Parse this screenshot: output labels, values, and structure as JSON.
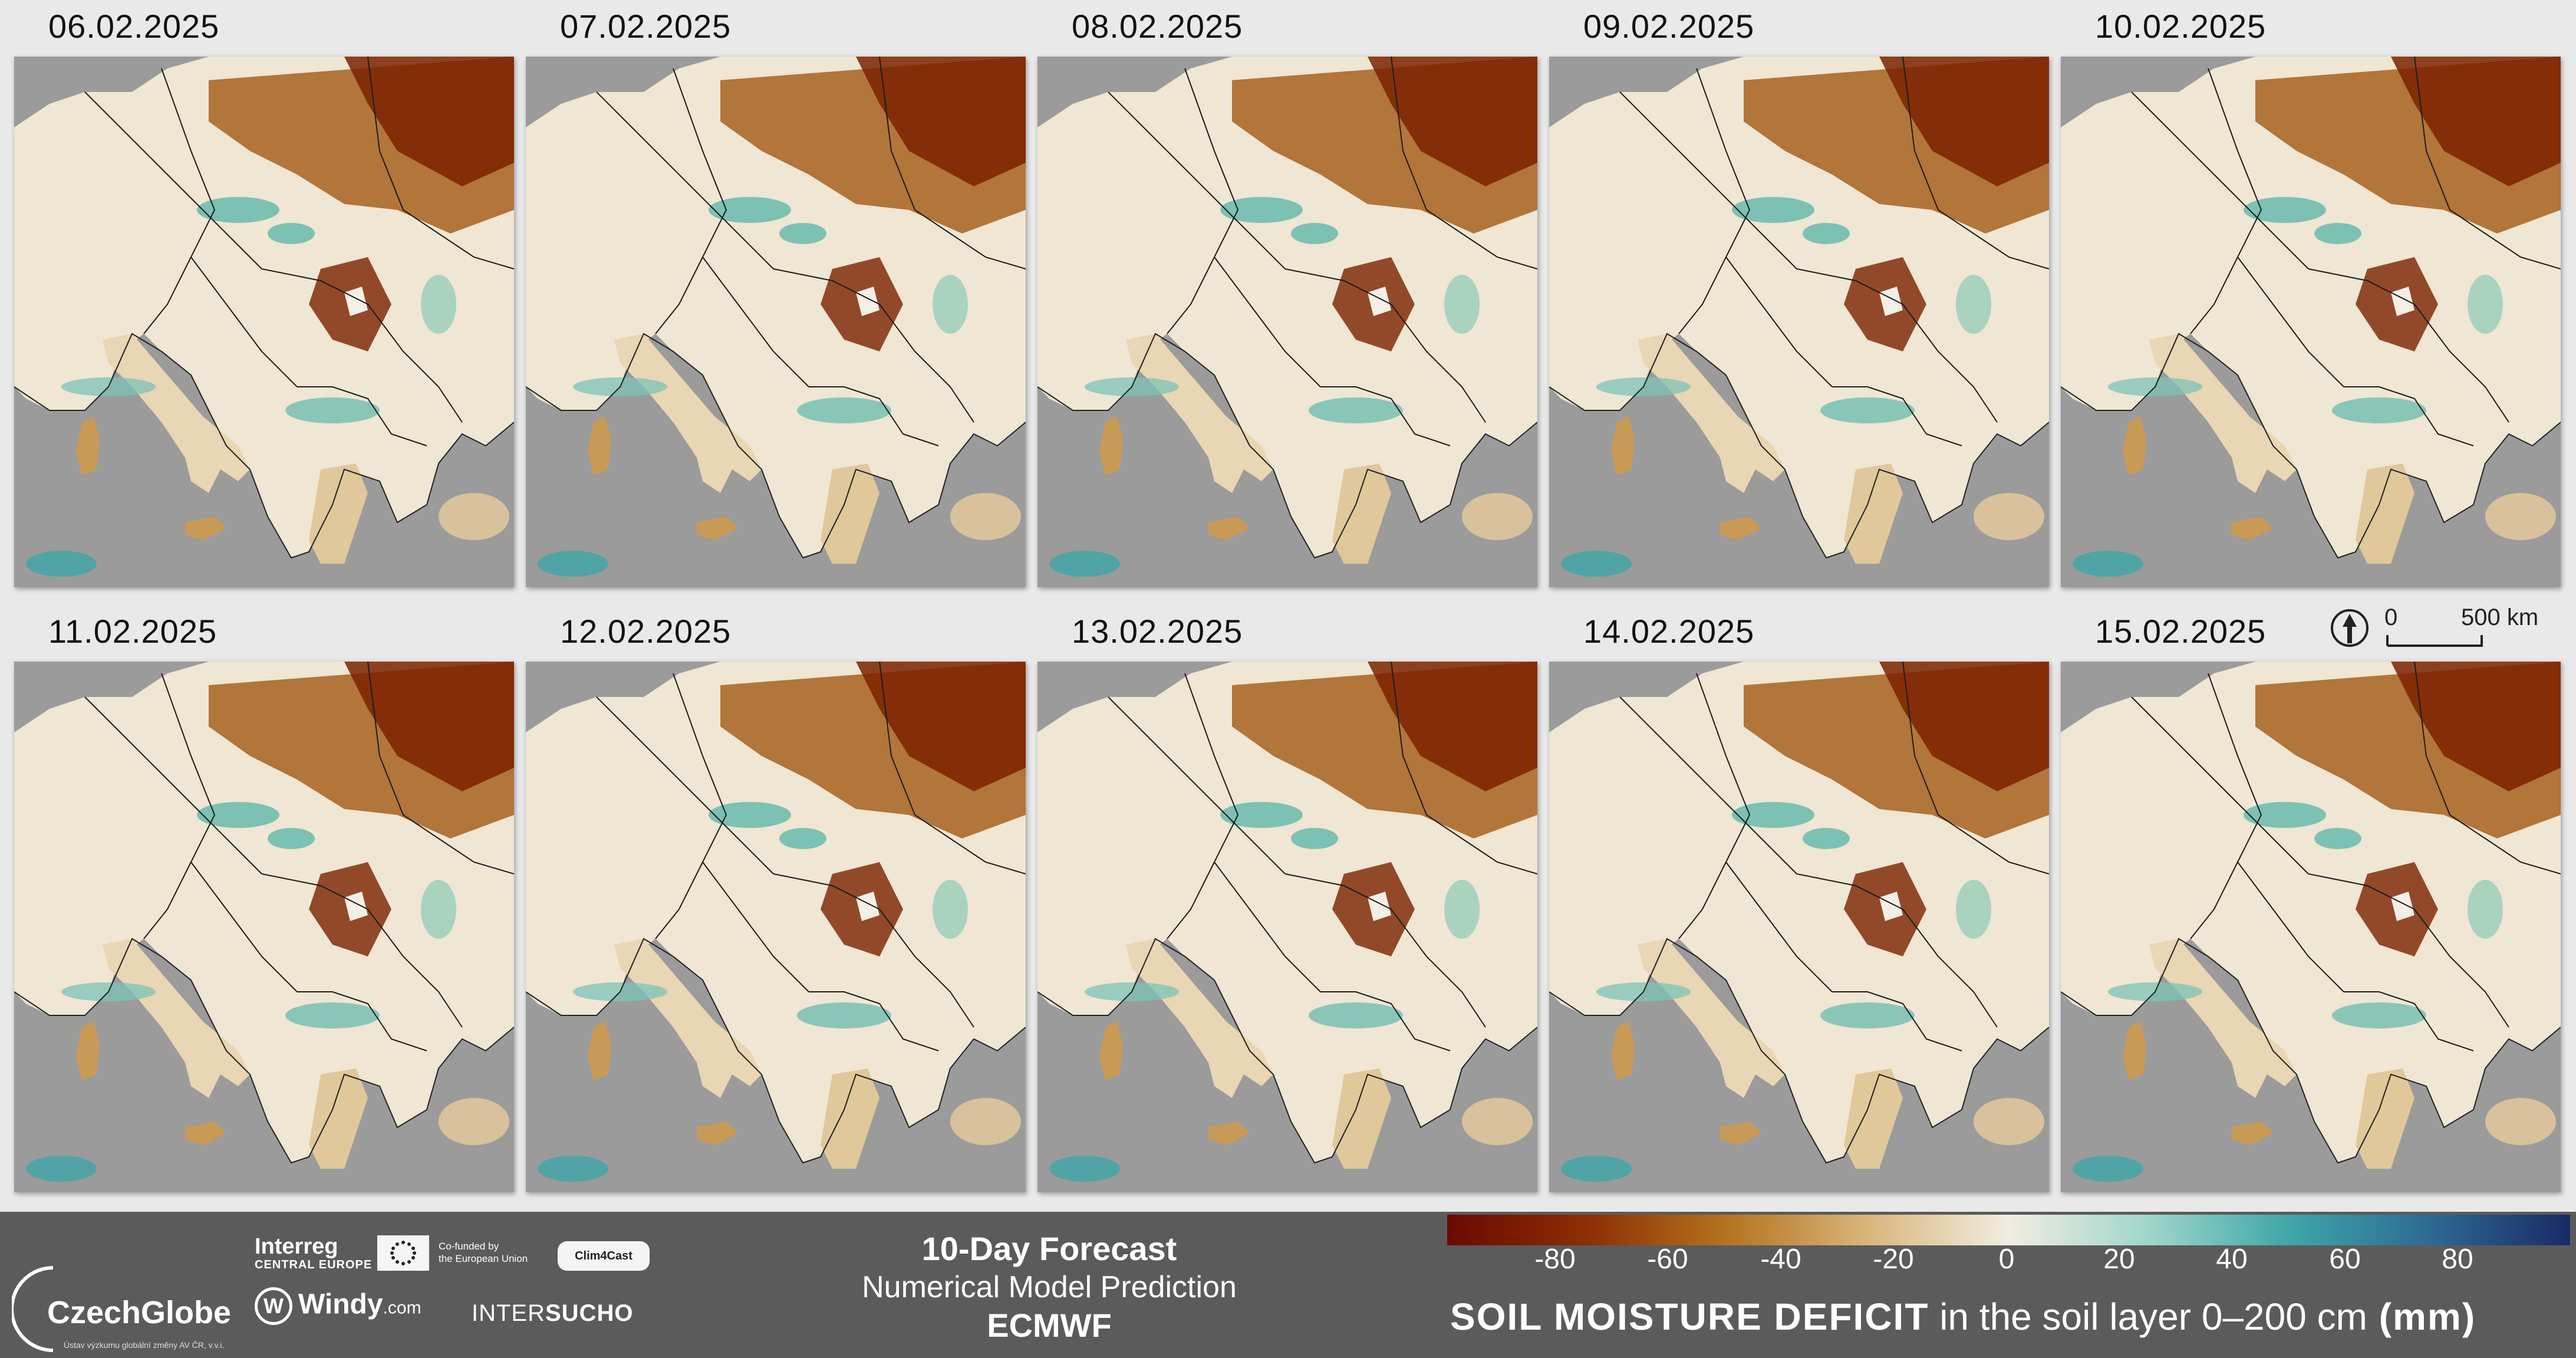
{
  "panels": [
    {
      "date": "06.02.2025"
    },
    {
      "date": "07.02.2025"
    },
    {
      "date": "08.02.2025"
    },
    {
      "date": "09.02.2025"
    },
    {
      "date": "10.02.2025"
    },
    {
      "date": "11.02.2025"
    },
    {
      "date": "12.02.2025"
    },
    {
      "date": "13.02.2025"
    },
    {
      "date": "14.02.2025"
    },
    {
      "date": "15.02.2025"
    }
  ],
  "scalebar": {
    "zero": "0",
    "distance": "500 km"
  },
  "forecast": {
    "title": "10-Day Forecast",
    "subtitle": "Numerical Model Prediction",
    "model": "ECMWF"
  },
  "legend": {
    "title_bold": "SOIL MOISTURE DEFICIT",
    "title_rest": " in the soil layer 0–200 cm",
    "title_unit": " (mm)",
    "ticks": [
      "-80",
      "-60",
      "-40",
      "-20",
      "0",
      "20",
      "40",
      "60",
      "80"
    ],
    "colors": [
      "#6a0a00",
      "#8c2e05",
      "#b5741f",
      "#d9b67d",
      "#f1ede0",
      "#9fd6cc",
      "#3fa6a8",
      "#2d6a93",
      "#1a2a66"
    ]
  },
  "logos": {
    "czechglobe": "CzechGlobe",
    "czechglobe_sub": "Ústav výzkumu globální změny AV ČR, v.v.i.",
    "interreg": "Interreg",
    "interreg_sub": "CENTRAL EUROPE",
    "cofunded_1": "Co-funded by",
    "cofunded_2": "the European Union",
    "clim4cast": "Clim4Cast",
    "windy": "Windy",
    "windy_com": ".com",
    "intersucho_a": "INTER",
    "intersucho_b": "SUCHO"
  },
  "map_colors": {
    "sea": "#9b9b9b",
    "land_wet": "#f3efe6",
    "dry": "#7a2200",
    "wet": "#5fb8ad"
  }
}
